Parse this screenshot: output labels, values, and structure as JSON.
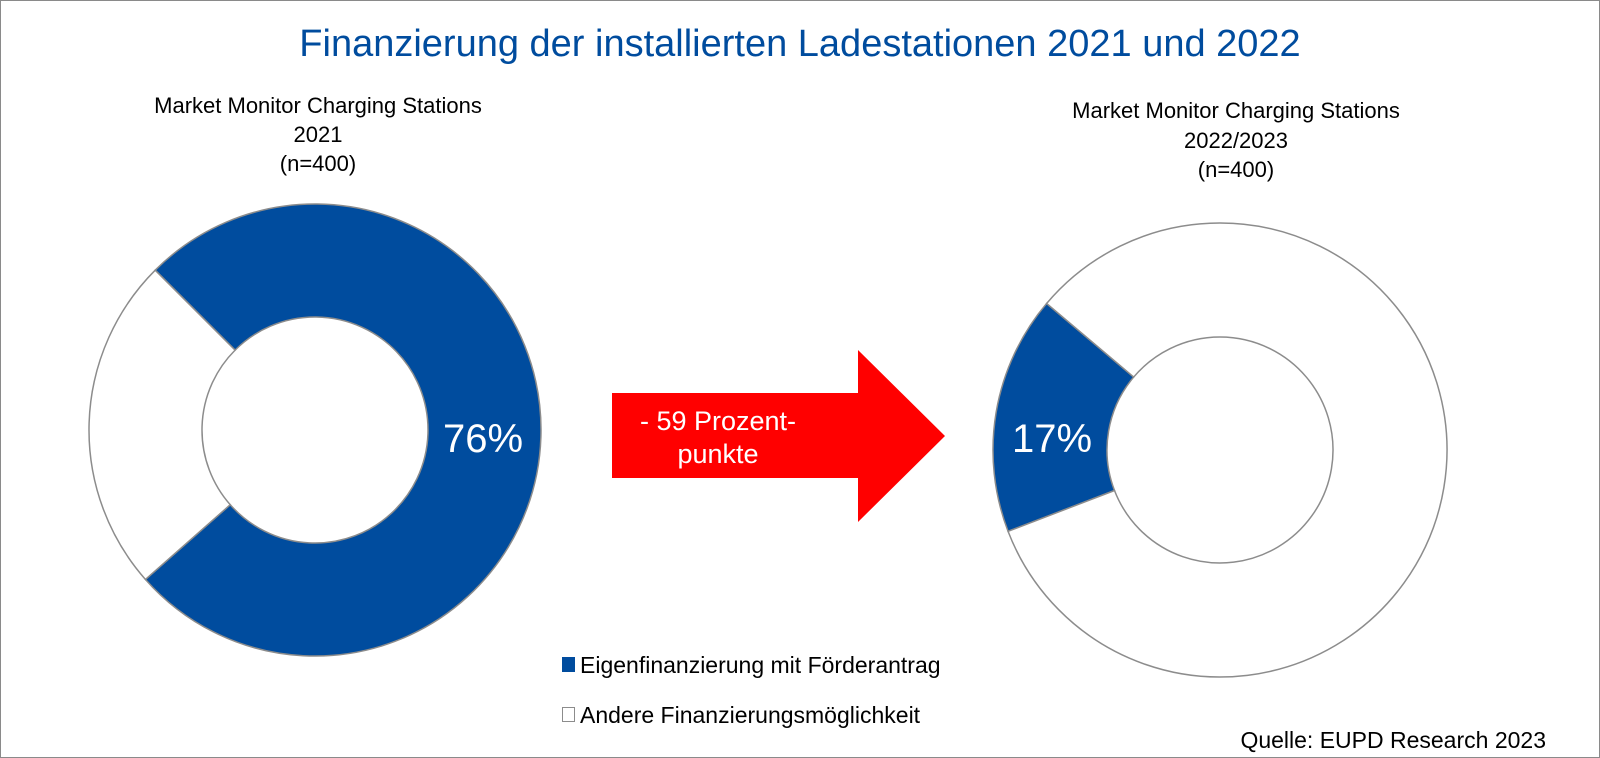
{
  "chart_data": [
    {
      "type": "pie",
      "variant": "donut",
      "subtitle": [
        "Market Monitor Charging Stations",
        "2021",
        "(n=400)"
      ],
      "categories": [
        "Eigenfinanzierung mit Förderantrag",
        "Andere Finanzierungsmöglichkeit"
      ],
      "values": [
        76,
        24
      ],
      "data_labels": [
        "76%"
      ]
    },
    {
      "type": "pie",
      "variant": "donut",
      "subtitle": [
        "Market Monitor Charging Stations",
        "2022/2023",
        "(n=400)"
      ],
      "categories": [
        "Eigenfinanzierung mit Förderantrag",
        "Andere Finanzierungsmöglichkeit"
      ],
      "values": [
        17,
        83
      ],
      "data_labels": [
        "17%"
      ]
    }
  ],
  "title": "Finanzierung der installierten Ladestationen 2021 und 2022",
  "arrow": {
    "line1": "- 59 Prozent-",
    "line2": "punkte"
  },
  "legend": [
    {
      "label": "Eigenfinanzierung mit Förderantrag",
      "color": "#004c9e"
    },
    {
      "label": "Andere Finanzierungsmöglichkeit",
      "color": "#ffffff"
    }
  ],
  "source": "Quelle: EUPD Research 2023",
  "colors": {
    "title": "#004c9e",
    "primary": "#004c9e",
    "arrow": "#ff0000",
    "outline": "#8c8c8c"
  }
}
